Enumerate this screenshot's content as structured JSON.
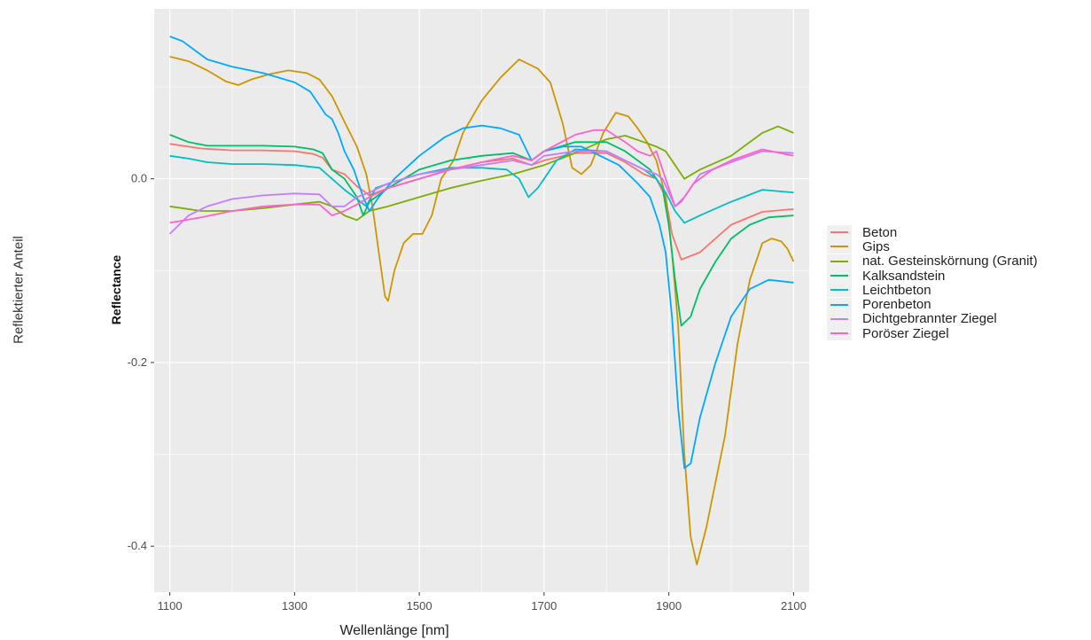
{
  "outer_labels": {
    "y": "Reflektierter Anteil",
    "x": "Wellenlänge [nm]"
  },
  "chart_data": {
    "type": "line",
    "ylabel": "Reflectance",
    "xlabel": "",
    "xlim": [
      1075,
      2125
    ],
    "ylim": [
      -0.45,
      0.185
    ],
    "x_ticks": [
      1100,
      1300,
      1500,
      1700,
      1900,
      2100
    ],
    "y_ticks": [
      -0.4,
      -0.2,
      0.0
    ],
    "y_tick_labels": [
      "-0.4",
      "-0.2",
      "0.0"
    ],
    "grid": true,
    "legend_position": "right",
    "panel_background": "#ebebeb",
    "series": [
      {
        "name": "Beton",
        "color": "#F8766D",
        "points": [
          [
            1100,
            0.038
          ],
          [
            1150,
            0.033
          ],
          [
            1200,
            0.031
          ],
          [
            1250,
            0.031
          ],
          [
            1300,
            0.03
          ],
          [
            1330,
            0.027
          ],
          [
            1345,
            0.023
          ],
          [
            1360,
            0.01
          ],
          [
            1380,
            0.005
          ],
          [
            1400,
            -0.008
          ],
          [
            1420,
            -0.018
          ],
          [
            1450,
            -0.01
          ],
          [
            1500,
            0.0
          ],
          [
            1550,
            0.01
          ],
          [
            1600,
            0.018
          ],
          [
            1650,
            0.022
          ],
          [
            1680,
            0.015
          ],
          [
            1700,
            0.02
          ],
          [
            1750,
            0.028
          ],
          [
            1800,
            0.028
          ],
          [
            1830,
            0.018
          ],
          [
            1860,
            0.005
          ],
          [
            1880,
            0.0
          ],
          [
            1895,
            -0.02
          ],
          [
            1905,
            -0.06
          ],
          [
            1920,
            -0.088
          ],
          [
            1950,
            -0.08
          ],
          [
            2000,
            -0.05
          ],
          [
            2050,
            -0.036
          ],
          [
            2100,
            -0.033
          ]
        ]
      },
      {
        "name": "Gips",
        "color": "#CD9600",
        "points": [
          [
            1100,
            0.133
          ],
          [
            1130,
            0.128
          ],
          [
            1160,
            0.118
          ],
          [
            1190,
            0.106
          ],
          [
            1210,
            0.102
          ],
          [
            1230,
            0.108
          ],
          [
            1260,
            0.114
          ],
          [
            1290,
            0.118
          ],
          [
            1320,
            0.115
          ],
          [
            1340,
            0.108
          ],
          [
            1360,
            0.09
          ],
          [
            1380,
            0.062
          ],
          [
            1400,
            0.035
          ],
          [
            1415,
            0.005
          ],
          [
            1425,
            -0.03
          ],
          [
            1435,
            -0.08
          ],
          [
            1445,
            -0.128
          ],
          [
            1450,
            -0.133
          ],
          [
            1460,
            -0.1
          ],
          [
            1475,
            -0.07
          ],
          [
            1490,
            -0.06
          ],
          [
            1505,
            -0.06
          ],
          [
            1520,
            -0.04
          ],
          [
            1535,
            0.0
          ],
          [
            1555,
            0.02
          ],
          [
            1570,
            0.05
          ],
          [
            1600,
            0.085
          ],
          [
            1630,
            0.11
          ],
          [
            1660,
            0.13
          ],
          [
            1690,
            0.12
          ],
          [
            1710,
            0.105
          ],
          [
            1730,
            0.06
          ],
          [
            1745,
            0.012
          ],
          [
            1760,
            0.005
          ],
          [
            1775,
            0.015
          ],
          [
            1795,
            0.05
          ],
          [
            1815,
            0.072
          ],
          [
            1835,
            0.068
          ],
          [
            1850,
            0.055
          ],
          [
            1865,
            0.04
          ],
          [
            1880,
            0.02
          ],
          [
            1895,
            -0.02
          ],
          [
            1905,
            -0.08
          ],
          [
            1915,
            -0.16
          ],
          [
            1925,
            -0.3
          ],
          [
            1935,
            -0.39
          ],
          [
            1945,
            -0.42
          ],
          [
            1960,
            -0.38
          ],
          [
            1975,
            -0.33
          ],
          [
            1990,
            -0.28
          ],
          [
            2010,
            -0.18
          ],
          [
            2030,
            -0.11
          ],
          [
            2050,
            -0.07
          ],
          [
            2065,
            -0.065
          ],
          [
            2080,
            -0.068
          ],
          [
            2090,
            -0.076
          ],
          [
            2100,
            -0.09
          ]
        ]
      },
      {
        "name": "nat. Gesteinskörnung (Granit)",
        "color": "#7CAE00",
        "points": [
          [
            1100,
            -0.03
          ],
          [
            1150,
            -0.035
          ],
          [
            1200,
            -0.035
          ],
          [
            1250,
            -0.032
          ],
          [
            1300,
            -0.028
          ],
          [
            1340,
            -0.025
          ],
          [
            1360,
            -0.03
          ],
          [
            1380,
            -0.04
          ],
          [
            1400,
            -0.045
          ],
          [
            1420,
            -0.035
          ],
          [
            1450,
            -0.03
          ],
          [
            1500,
            -0.02
          ],
          [
            1550,
            -0.01
          ],
          [
            1600,
            -0.002
          ],
          [
            1650,
            0.005
          ],
          [
            1700,
            0.015
          ],
          [
            1750,
            0.028
          ],
          [
            1800,
            0.043
          ],
          [
            1830,
            0.047
          ],
          [
            1860,
            0.04
          ],
          [
            1880,
            0.035
          ],
          [
            1895,
            0.03
          ],
          [
            1910,
            0.015
          ],
          [
            1925,
            0.0
          ],
          [
            1950,
            0.01
          ],
          [
            2000,
            0.025
          ],
          [
            2050,
            0.05
          ],
          [
            2075,
            0.057
          ],
          [
            2100,
            0.05
          ]
        ]
      },
      {
        "name": "Kalksandstein",
        "color": "#00BE67",
        "points": [
          [
            1100,
            0.048
          ],
          [
            1130,
            0.04
          ],
          [
            1160,
            0.036
          ],
          [
            1200,
            0.036
          ],
          [
            1250,
            0.036
          ],
          [
            1300,
            0.035
          ],
          [
            1330,
            0.032
          ],
          [
            1345,
            0.028
          ],
          [
            1360,
            0.01
          ],
          [
            1380,
            0.0
          ],
          [
            1400,
            -0.02
          ],
          [
            1410,
            -0.04
          ],
          [
            1420,
            -0.025
          ],
          [
            1450,
            -0.01
          ],
          [
            1500,
            0.01
          ],
          [
            1550,
            0.02
          ],
          [
            1600,
            0.025
          ],
          [
            1650,
            0.028
          ],
          [
            1680,
            0.02
          ],
          [
            1700,
            0.03
          ],
          [
            1750,
            0.04
          ],
          [
            1800,
            0.04
          ],
          [
            1830,
            0.03
          ],
          [
            1850,
            0.02
          ],
          [
            1870,
            0.01
          ],
          [
            1890,
            -0.01
          ],
          [
            1900,
            -0.05
          ],
          [
            1910,
            -0.11
          ],
          [
            1920,
            -0.16
          ],
          [
            1935,
            -0.15
          ],
          [
            1950,
            -0.12
          ],
          [
            1975,
            -0.09
          ],
          [
            2000,
            -0.065
          ],
          [
            2030,
            -0.05
          ],
          [
            2060,
            -0.042
          ],
          [
            2100,
            -0.04
          ]
        ]
      },
      {
        "name": "Leichtbeton",
        "color": "#00BFC4",
        "points": [
          [
            1100,
            0.025
          ],
          [
            1130,
            0.022
          ],
          [
            1160,
            0.018
          ],
          [
            1200,
            0.016
          ],
          [
            1250,
            0.016
          ],
          [
            1300,
            0.015
          ],
          [
            1340,
            0.012
          ],
          [
            1360,
            0.0
          ],
          [
            1380,
            -0.012
          ],
          [
            1400,
            -0.022
          ],
          [
            1415,
            -0.03
          ],
          [
            1430,
            -0.01
          ],
          [
            1460,
            -0.003
          ],
          [
            1500,
            0.005
          ],
          [
            1550,
            0.012
          ],
          [
            1600,
            0.012
          ],
          [
            1640,
            0.01
          ],
          [
            1660,
            0.0
          ],
          [
            1675,
            -0.02
          ],
          [
            1690,
            -0.01
          ],
          [
            1720,
            0.02
          ],
          [
            1750,
            0.032
          ],
          [
            1800,
            0.03
          ],
          [
            1830,
            0.02
          ],
          [
            1860,
            0.01
          ],
          [
            1880,
            0.0
          ],
          [
            1895,
            -0.015
          ],
          [
            1910,
            -0.035
          ],
          [
            1925,
            -0.048
          ],
          [
            1950,
            -0.04
          ],
          [
            2000,
            -0.025
          ],
          [
            2050,
            -0.012
          ],
          [
            2100,
            -0.015
          ]
        ]
      },
      {
        "name": "Porenbeton",
        "color": "#00A9FF",
        "points": [
          [
            1100,
            0.155
          ],
          [
            1120,
            0.15
          ],
          [
            1140,
            0.14
          ],
          [
            1160,
            0.13
          ],
          [
            1200,
            0.122
          ],
          [
            1250,
            0.115
          ],
          [
            1300,
            0.105
          ],
          [
            1325,
            0.095
          ],
          [
            1340,
            0.08
          ],
          [
            1350,
            0.07
          ],
          [
            1360,
            0.065
          ],
          [
            1370,
            0.05
          ],
          [
            1380,
            0.03
          ],
          [
            1395,
            0.01
          ],
          [
            1410,
            -0.02
          ],
          [
            1420,
            -0.035
          ],
          [
            1435,
            -0.02
          ],
          [
            1460,
            0.0
          ],
          [
            1500,
            0.025
          ],
          [
            1540,
            0.045
          ],
          [
            1570,
            0.055
          ],
          [
            1600,
            0.058
          ],
          [
            1630,
            0.055
          ],
          [
            1660,
            0.048
          ],
          [
            1680,
            0.02
          ],
          [
            1700,
            0.03
          ],
          [
            1730,
            0.035
          ],
          [
            1760,
            0.035
          ],
          [
            1790,
            0.025
          ],
          [
            1820,
            0.015
          ],
          [
            1850,
            -0.005
          ],
          [
            1870,
            -0.02
          ],
          [
            1885,
            -0.05
          ],
          [
            1895,
            -0.08
          ],
          [
            1905,
            -0.15
          ],
          [
            1915,
            -0.25
          ],
          [
            1925,
            -0.315
          ],
          [
            1935,
            -0.31
          ],
          [
            1950,
            -0.26
          ],
          [
            1975,
            -0.2
          ],
          [
            2000,
            -0.15
          ],
          [
            2030,
            -0.12
          ],
          [
            2060,
            -0.11
          ],
          [
            2100,
            -0.113
          ]
        ]
      },
      {
        "name": "Dichtgebrannter Ziegel",
        "color": "#C77CFF",
        "points": [
          [
            1100,
            -0.06
          ],
          [
            1130,
            -0.04
          ],
          [
            1160,
            -0.03
          ],
          [
            1200,
            -0.022
          ],
          [
            1250,
            -0.018
          ],
          [
            1300,
            -0.016
          ],
          [
            1340,
            -0.017
          ],
          [
            1360,
            -0.03
          ],
          [
            1380,
            -0.03
          ],
          [
            1400,
            -0.02
          ],
          [
            1420,
            -0.015
          ],
          [
            1450,
            -0.005
          ],
          [
            1500,
            0.005
          ],
          [
            1550,
            0.01
          ],
          [
            1600,
            0.015
          ],
          [
            1650,
            0.02
          ],
          [
            1680,
            0.015
          ],
          [
            1700,
            0.025
          ],
          [
            1750,
            0.03
          ],
          [
            1800,
            0.03
          ],
          [
            1830,
            0.02
          ],
          [
            1860,
            0.01
          ],
          [
            1880,
            0.005
          ],
          [
            1890,
            0.0
          ],
          [
            1900,
            -0.015
          ],
          [
            1910,
            -0.03
          ],
          [
            1925,
            -0.02
          ],
          [
            1950,
            0.005
          ],
          [
            2000,
            0.018
          ],
          [
            2050,
            0.03
          ],
          [
            2100,
            0.028
          ]
        ]
      },
      {
        "name": "Poröser Ziegel",
        "color": "#FF61CC",
        "points": [
          [
            1100,
            -0.048
          ],
          [
            1150,
            -0.042
          ],
          [
            1200,
            -0.035
          ],
          [
            1250,
            -0.03
          ],
          [
            1300,
            -0.028
          ],
          [
            1340,
            -0.028
          ],
          [
            1360,
            -0.04
          ],
          [
            1380,
            -0.035
          ],
          [
            1400,
            -0.028
          ],
          [
            1420,
            -0.02
          ],
          [
            1450,
            -0.01
          ],
          [
            1500,
            0.0
          ],
          [
            1550,
            0.01
          ],
          [
            1600,
            0.018
          ],
          [
            1650,
            0.025
          ],
          [
            1680,
            0.02
          ],
          [
            1700,
            0.03
          ],
          [
            1750,
            0.048
          ],
          [
            1780,
            0.053
          ],
          [
            1800,
            0.053
          ],
          [
            1830,
            0.04
          ],
          [
            1850,
            0.03
          ],
          [
            1870,
            0.025
          ],
          [
            1880,
            0.03
          ],
          [
            1890,
            0.01
          ],
          [
            1900,
            -0.01
          ],
          [
            1910,
            -0.03
          ],
          [
            1920,
            -0.025
          ],
          [
            1940,
            -0.005
          ],
          [
            1970,
            0.01
          ],
          [
            2000,
            0.02
          ],
          [
            2050,
            0.032
          ],
          [
            2100,
            0.025
          ]
        ]
      }
    ]
  }
}
